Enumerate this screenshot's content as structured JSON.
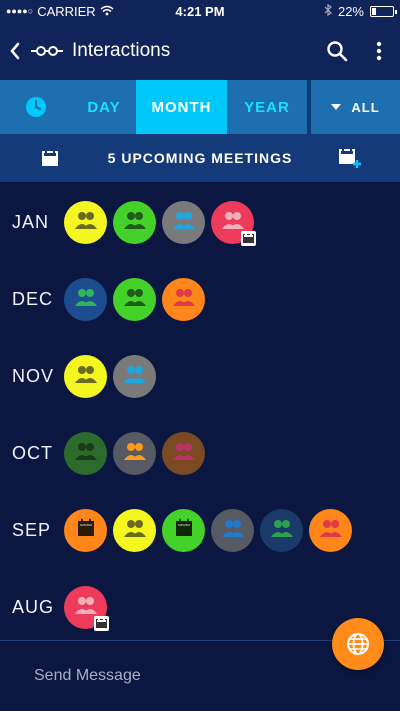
{
  "status": {
    "carrier": "CARRIER",
    "time": "4:21 PM",
    "battery": "22%",
    "battery_level": 0.22
  },
  "app_bar": {
    "title": "Interactions"
  },
  "range": {
    "tabs": [
      {
        "label": "DAY",
        "selected": false
      },
      {
        "label": "MONTH",
        "selected": true
      },
      {
        "label": "YEAR",
        "selected": false
      }
    ],
    "filter_label": "ALL"
  },
  "meetings": {
    "label": "5 UPCOMING MEETINGS"
  },
  "timeline": [
    {
      "month": "JAN",
      "items": [
        {
          "type": "people",
          "bg": "#f5f51f",
          "fg": "#6a6a20"
        },
        {
          "type": "people",
          "bg": "#44d12a",
          "fg": "#1f5b1a"
        },
        {
          "type": "people",
          "bg": "#7a7a7a",
          "fg": "#1fa6e0"
        },
        {
          "type": "people",
          "bg": "#ef3b5b",
          "fg": "#f0b0bc",
          "badge": true
        }
      ]
    },
    {
      "month": "DEC",
      "items": [
        {
          "type": "people",
          "bg": "#1e4d8f",
          "fg": "#2fb55a"
        },
        {
          "type": "people",
          "bg": "#44d12a",
          "fg": "#1f5b1a"
        },
        {
          "type": "people",
          "bg": "#ff861a",
          "fg": "#e03a4a"
        }
      ]
    },
    {
      "month": "NOV",
      "items": [
        {
          "type": "people",
          "bg": "#f5f51f",
          "fg": "#6a6a20"
        },
        {
          "type": "people",
          "bg": "#7a7a7a",
          "fg": "#1fa6e0"
        }
      ]
    },
    {
      "month": "OCT",
      "items": [
        {
          "type": "people",
          "bg": "#2d6b2d",
          "fg": "#1a3a1a"
        },
        {
          "type": "people",
          "bg": "#565a62",
          "fg": "#ff9a1a"
        },
        {
          "type": "people",
          "bg": "#7a4a22",
          "fg": "#c0306a"
        }
      ]
    },
    {
      "month": "SEP",
      "items": [
        {
          "type": "calendar",
          "bg": "#ff861a",
          "fg": "#2a1a08"
        },
        {
          "type": "people",
          "bg": "#f5f51f",
          "fg": "#6a6a20"
        },
        {
          "type": "calendar",
          "bg": "#44d12a",
          "fg": "#10260a"
        },
        {
          "type": "people",
          "bg": "#565a62",
          "fg": "#1f7ad0"
        },
        {
          "type": "people",
          "bg": "#1a3a6a",
          "fg": "#2fa04a"
        },
        {
          "type": "people",
          "bg": "#ff861a",
          "fg": "#e03a4a"
        }
      ]
    },
    {
      "month": "AUG",
      "items": [
        {
          "type": "people",
          "bg": "#ef3b5b",
          "fg": "#f0b0bc",
          "badge": true
        }
      ]
    }
  ],
  "composer": {
    "placeholder": "Send Message"
  },
  "colors": {
    "background": "#0b1740",
    "app_bar": "#11245a",
    "range_bar": "#1e6fb0",
    "tab_selected": "#00c8f8",
    "meetings_bar": "#143a7a",
    "fab": "#ff8c1a"
  }
}
